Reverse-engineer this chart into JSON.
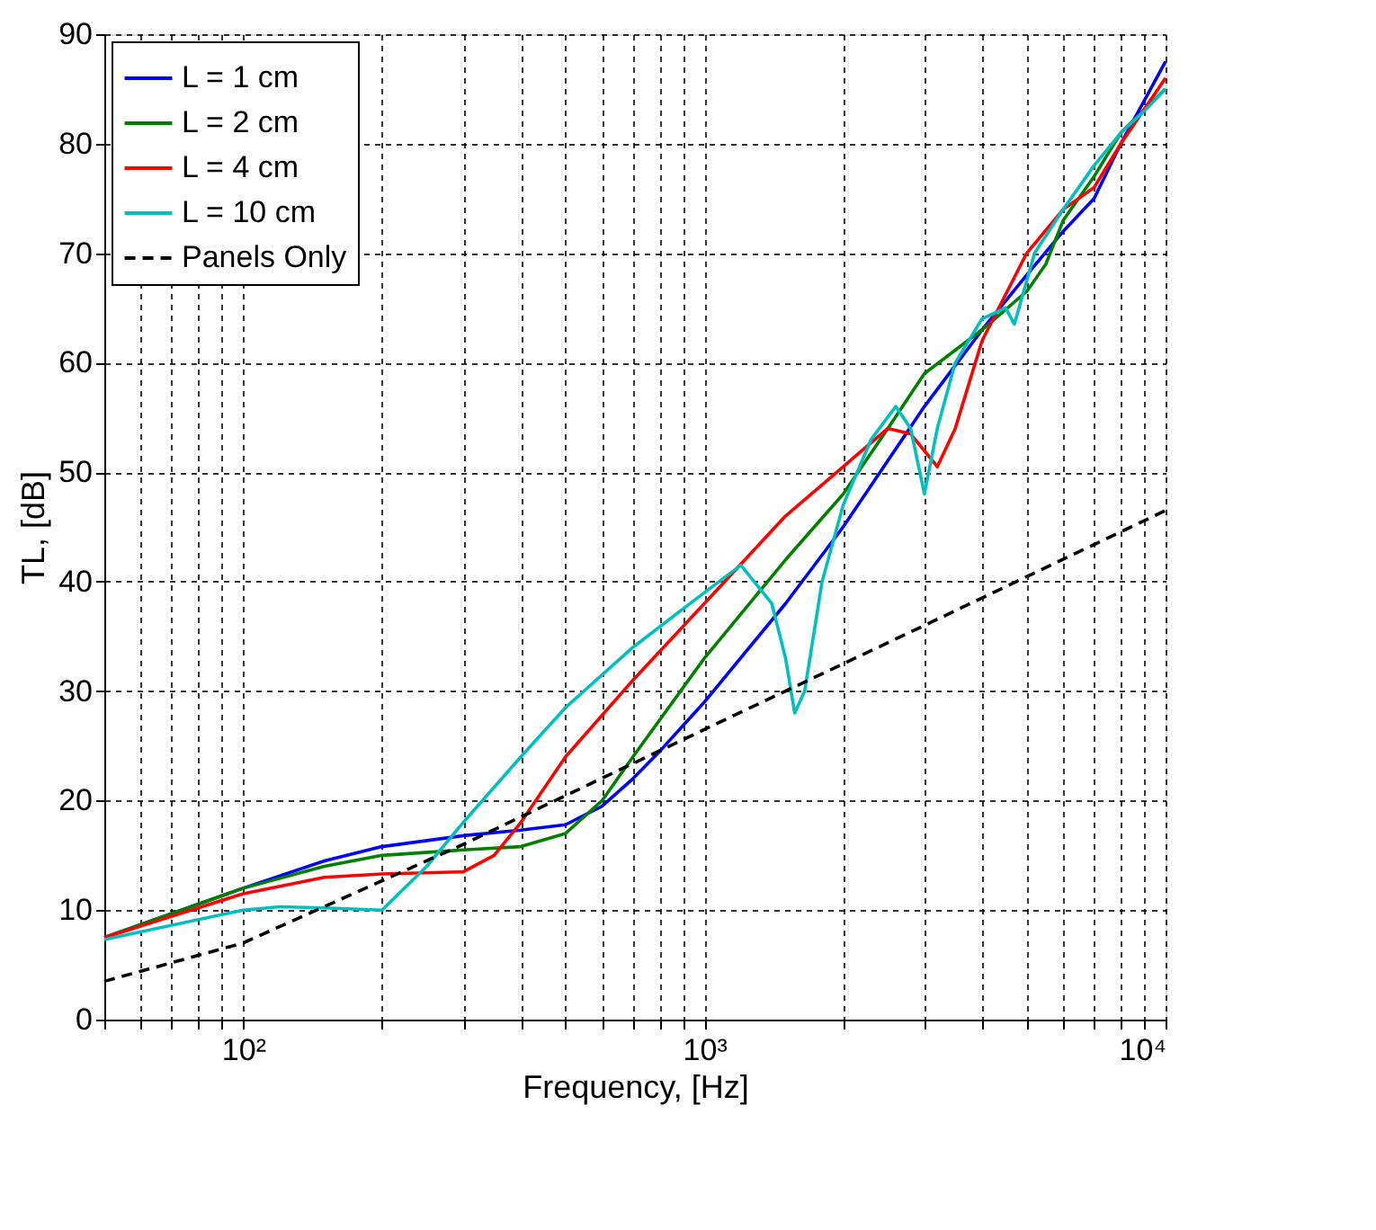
{
  "chart_data": {
    "type": "line",
    "xlabel": "Frequency, [Hz]",
    "ylabel": "TL, [dB]",
    "log": "x",
    "xlim": [
      50,
      10000
    ],
    "ylim": [
      0,
      90
    ],
    "xticks": [
      {
        "value": 50,
        "label": null
      },
      {
        "value": 60,
        "label": null
      },
      {
        "value": 70,
        "label": null
      },
      {
        "value": 80,
        "label": null
      },
      {
        "value": 90,
        "label": null
      },
      {
        "value": 100,
        "label": "10²"
      },
      {
        "value": 200,
        "label": null
      },
      {
        "value": 300,
        "label": null
      },
      {
        "value": 400,
        "label": null
      },
      {
        "value": 500,
        "label": null
      },
      {
        "value": 600,
        "label": null
      },
      {
        "value": 700,
        "label": null
      },
      {
        "value": 800,
        "label": null
      },
      {
        "value": 900,
        "label": null
      },
      {
        "value": 1000,
        "label": "10³"
      },
      {
        "value": 2000,
        "label": null
      },
      {
        "value": 3000,
        "label": null
      },
      {
        "value": 4000,
        "label": null
      },
      {
        "value": 5000,
        "label": null
      },
      {
        "value": 6000,
        "label": null
      },
      {
        "value": 7000,
        "label": null
      },
      {
        "value": 8000,
        "label": null
      },
      {
        "value": 9000,
        "label": null
      },
      {
        "value": 10000,
        "label": "10⁴"
      }
    ],
    "yticks": [
      0,
      10,
      20,
      30,
      40,
      50,
      60,
      70,
      80,
      90
    ],
    "grid": true,
    "legend": "top left",
    "marker": "none",
    "series": [
      {
        "name": "L = 1 cm",
        "color": "#0000ff",
        "line_style": "solid",
        "x": [
          50,
          100,
          150,
          200,
          300,
          400,
          500,
          600,
          700,
          800,
          1000,
          1500,
          2000,
          3000,
          4000,
          5000,
          6000,
          7000,
          8000,
          10000
        ],
        "values": [
          7.5,
          12,
          14.5,
          15.8,
          16.8,
          17.3,
          17.8,
          19.5,
          22,
          24.5,
          29,
          38,
          45,
          56,
          63,
          68,
          72,
          75,
          80,
          87.5
        ]
      },
      {
        "name": "L = 2 cm",
        "color": "#008000",
        "line_style": "solid",
        "x": [
          50,
          100,
          150,
          200,
          300,
          400,
          500,
          600,
          700,
          1000,
          1500,
          2000,
          2500,
          3000,
          4000,
          5000,
          5500,
          6000,
          7000,
          8000,
          10000
        ],
        "values": [
          7.5,
          12,
          14,
          15,
          15.5,
          15.8,
          17,
          20,
          24,
          33,
          42,
          48,
          54,
          59,
          63,
          66.5,
          69,
          73,
          77,
          81,
          85
        ]
      },
      {
        "name": "L = 4 cm",
        "color": "#ff0000",
        "line_style": "solid",
        "x": [
          50,
          100,
          150,
          200,
          300,
          350,
          400,
          500,
          700,
          1000,
          1500,
          2000,
          2500,
          2800,
          3200,
          3500,
          4000,
          5000,
          6000,
          7000,
          8000,
          10000
        ],
        "values": [
          7.5,
          11.5,
          13,
          13.3,
          13.5,
          15,
          18,
          24,
          31,
          38,
          46,
          50.5,
          54,
          53.5,
          50.5,
          54,
          62,
          70,
          74,
          76,
          80,
          86
        ]
      },
      {
        "name": "L = 10 cm",
        "color": "#00bfbf",
        "line_style": "solid",
        "x": [
          50,
          100,
          120,
          150,
          200,
          250,
          300,
          400,
          500,
          700,
          1000,
          1200,
          1400,
          1500,
          1570,
          1650,
          1800,
          2000,
          2300,
          2600,
          2800,
          3000,
          3200,
          3500,
          4000,
          4500,
          4700,
          5200,
          6000,
          7000,
          8000,
          9000,
          10000
        ],
        "values": [
          7.3,
          10,
          10.3,
          10.2,
          10,
          14,
          18,
          24,
          28.5,
          34,
          39,
          41.5,
          38,
          33,
          28,
          30,
          40,
          47,
          53,
          56,
          54,
          48,
          54,
          60,
          64,
          65,
          63.5,
          70,
          74,
          78,
          81,
          83,
          85
        ]
      },
      {
        "name": "Panels Only",
        "color": "#000000",
        "line_style": "dashed",
        "x": [
          50,
          100,
          300,
          1000,
          3000,
          10000
        ],
        "values": [
          3.5,
          7,
          16,
          26.5,
          36,
          46.5
        ]
      }
    ]
  }
}
